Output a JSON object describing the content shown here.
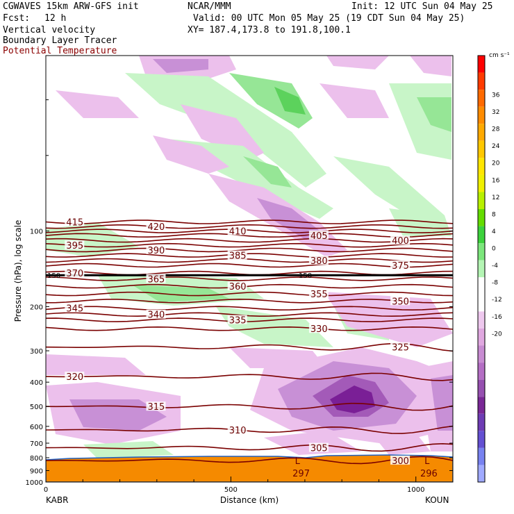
{
  "header": {
    "model": "CGWAVES 15km ARW-GFS init",
    "org": "NCAR/MMM",
    "init": "Init: 12 UTC Sun 04 May 25",
    "fcst_label": "Fcst:",
    "fcst_value": "12 h",
    "valid": "Valid: 00 UTC Mon 05 May 25 (19 CDT Sun 04 May 25)",
    "field1": "Vertical velocity",
    "xy": "XY= 187.4,173.8 to 191.8,100.1",
    "field2": "Boundary Layer Tracer",
    "field3": "Potential Temperature"
  },
  "colors": {
    "theta": "#7a0000",
    "ground": "#f58a00",
    "up_light": "#c8f5c8",
    "up_mid": "#96e696",
    "up_strong": "#5cd25c",
    "down_light": "#ecc0ec",
    "down_mid": "#c890d6",
    "down_strong": "#a35ab8",
    "down_vstrong": "#7a1f96"
  },
  "chart_data": {
    "type": "cross-section",
    "xlabel": "Distance (km)",
    "ylabel": "Pressure (hPa), log scale",
    "x_range": [
      0,
      1100
    ],
    "x_ticks": [
      "0",
      "500",
      "1000"
    ],
    "y_scale": "log",
    "y_range": [
      1000,
      20
    ],
    "y_ticks": [
      "100",
      "200",
      "300",
      "400",
      "500",
      "600",
      "700",
      "800",
      "900",
      "1000"
    ],
    "y_tick_values": [
      100,
      200,
      300,
      400,
      500,
      600,
      700,
      800,
      900,
      1000
    ],
    "endpoint_left": "KABR",
    "endpoint_right": "KOUN",
    "colorbar": {
      "units": "cm s⁻¹",
      "labels": [
        "36",
        "32",
        "28",
        "24",
        "20",
        "16",
        "12",
        "8",
        "4",
        "0",
        "-4",
        "-8",
        "-12",
        "-16",
        "-20"
      ],
      "colors": [
        "#ff0000",
        "#ff3b00",
        "#ff6a00",
        "#ff8c00",
        "#ffaa00",
        "#ffc800",
        "#ffe600",
        "#f0f000",
        "#b8f000",
        "#64dc00",
        "#3cd23c",
        "#7ce67c",
        "#b4f5b4",
        "#ffffff",
        "#ffffff",
        "#eec8ee",
        "#e0a8e0",
        "#c88cd2",
        "#b46ec4",
        "#9650b0",
        "#7a2896",
        "#6e3cb4",
        "#6450d2",
        "#7882f0",
        "#a0aaff"
      ]
    },
    "theta_contours": [
      {
        "label": "415",
        "p": 92
      },
      {
        "label": "420",
        "p": 96
      },
      {
        "label": "410",
        "p": 100
      },
      {
        "label": "405",
        "p": 104
      },
      {
        "label": "400",
        "p": 109
      },
      {
        "label": "395",
        "p": 114
      },
      {
        "label": "390",
        "p": 119
      },
      {
        "label": "385",
        "p": 125
      },
      {
        "label": "380",
        "p": 131
      },
      {
        "label": "375",
        "p": 137
      },
      {
        "label": "370",
        "p": 147
      },
      {
        "label": "365",
        "p": 155
      },
      {
        "label": "360",
        "p": 166
      },
      {
        "label": "355",
        "p": 178
      },
      {
        "label": "350",
        "p": 190
      },
      {
        "label": "345",
        "p": 203
      },
      {
        "label": "340",
        "p": 215
      },
      {
        "label": "335",
        "p": 226
      },
      {
        "label": "330",
        "p": 245
      },
      {
        "label": "325",
        "p": 290
      },
      {
        "label": "320",
        "p": 380
      },
      {
        "label": "315",
        "p": 500
      },
      {
        "label": "310",
        "p": 620
      },
      {
        "label": "305",
        "p": 730
      },
      {
        "label": "300",
        "p": 820
      }
    ],
    "tropopause_label": "150",
    "surface_labels": [
      {
        "label": "L",
        "x": 680
      },
      {
        "label": "297",
        "x": 690
      },
      {
        "label": "L",
        "x": 1030
      },
      {
        "label": "296",
        "x": 1035
      }
    ]
  }
}
